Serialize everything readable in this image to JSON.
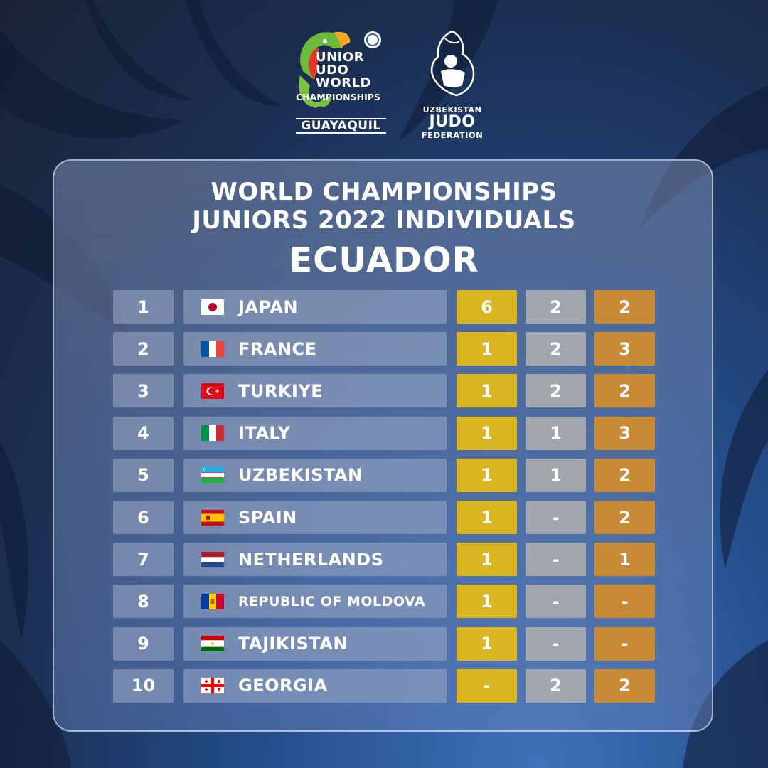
{
  "logos": {
    "jjwc": {
      "line_unior": "UNIOR",
      "line_udo": "UDO",
      "line_world": "WORLD",
      "line_championships": "CHAMPIONSHIPS",
      "line_country": "ECUADOR",
      "line_city": "GUAYAQUIL"
    },
    "uzf": {
      "line1": "UZBEKISTAN",
      "line2": "JUDO",
      "line3": "FEDERATION"
    }
  },
  "title": {
    "line1": "WORLD CHAMPIONSHIPS",
    "line2": "JUNIORS 2022 INDIVIDUALS",
    "line3": "ECUADOR"
  },
  "colors": {
    "gold": "#d9b522",
    "silver": "#a0a5ae",
    "bronze": "#c98a36"
  },
  "rows": [
    {
      "rank": "1",
      "country": "JAPAN",
      "flag": "japan-flag-icon",
      "gold": "6",
      "silver": "2",
      "bronze": "2"
    },
    {
      "rank": "2",
      "country": "FRANCE",
      "flag": "france-flag-icon",
      "gold": "1",
      "silver": "2",
      "bronze": "3"
    },
    {
      "rank": "3",
      "country": "TURKIYE",
      "flag": "turkiye-flag-icon",
      "gold": "1",
      "silver": "2",
      "bronze": "2"
    },
    {
      "rank": "4",
      "country": "ITALY",
      "flag": "italy-flag-icon",
      "gold": "1",
      "silver": "1",
      "bronze": "3"
    },
    {
      "rank": "5",
      "country": "UZBEKISTAN",
      "flag": "uzbekistan-flag-icon",
      "gold": "1",
      "silver": "1",
      "bronze": "2"
    },
    {
      "rank": "6",
      "country": "SPAIN",
      "flag": "spain-flag-icon",
      "gold": "1",
      "silver": "-",
      "bronze": "2"
    },
    {
      "rank": "7",
      "country": "NETHERLANDS",
      "flag": "netherlands-flag-icon",
      "gold": "1",
      "silver": "-",
      "bronze": "1"
    },
    {
      "rank": "8",
      "country": "REPUBLIC OF MOLDOVA",
      "flag": "moldova-flag-icon",
      "gold": "1",
      "silver": "-",
      "bronze": "-"
    },
    {
      "rank": "9",
      "country": "TAJIKISTAN",
      "flag": "tajikistan-flag-icon",
      "gold": "1",
      "silver": "-",
      "bronze": "-"
    },
    {
      "rank": "10",
      "country": "GEORGIA",
      "flag": "georgia-flag-icon",
      "gold": "-",
      "silver": "2",
      "bronze": "2"
    }
  ]
}
